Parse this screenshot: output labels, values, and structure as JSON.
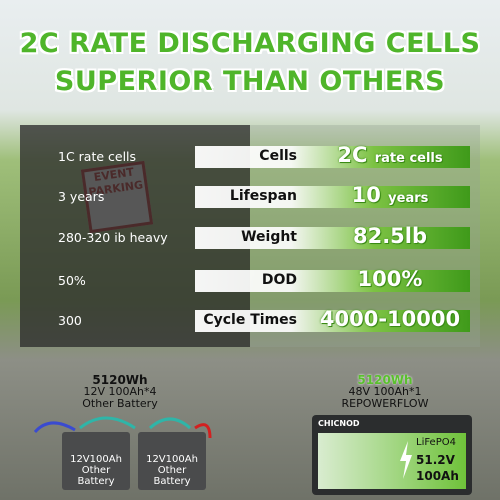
{
  "header": {
    "title_lines": [
      "2C RATE DISCHARGING CELLS",
      "SUPERIOR THAN OTHERS"
    ]
  },
  "sign": {
    "lines": [
      "EVENT",
      "PARKING"
    ]
  },
  "rows": [
    {
      "left": "1C rate cells",
      "label": "Cells",
      "right_big": "2C",
      "right_small": "rate cells"
    },
    {
      "left": "3 years",
      "label": "Lifespan",
      "right_big": "10",
      "right_small": "years"
    },
    {
      "left": "280-320 ib heavy",
      "label": "Weight",
      "right_big": "82.5lb",
      "right_small": null
    },
    {
      "left": "50%",
      "label": "DOD",
      "right_big": "100%",
      "right_small": null
    },
    {
      "left": "300",
      "label": "Cycle Times",
      "right_big": "4000-10000",
      "right_small": null
    }
  ],
  "other": {
    "energy": "5120Wh",
    "config": "12V 100Ah*4",
    "name": "Other Battery",
    "units": [
      {
        "spec": "12V100Ah",
        "name": "Other Battery"
      },
      {
        "spec": "12V100Ah",
        "name": "Other Battery"
      }
    ]
  },
  "ours": {
    "energy": "5120Wh",
    "config": "48V 100Ah*1",
    "name": "REPOWERFLOW",
    "battery": {
      "brand": "CHICNOD",
      "chem": "LiFePO4",
      "voltage": "51.2V",
      "capacity": "100Ah"
    }
  }
}
